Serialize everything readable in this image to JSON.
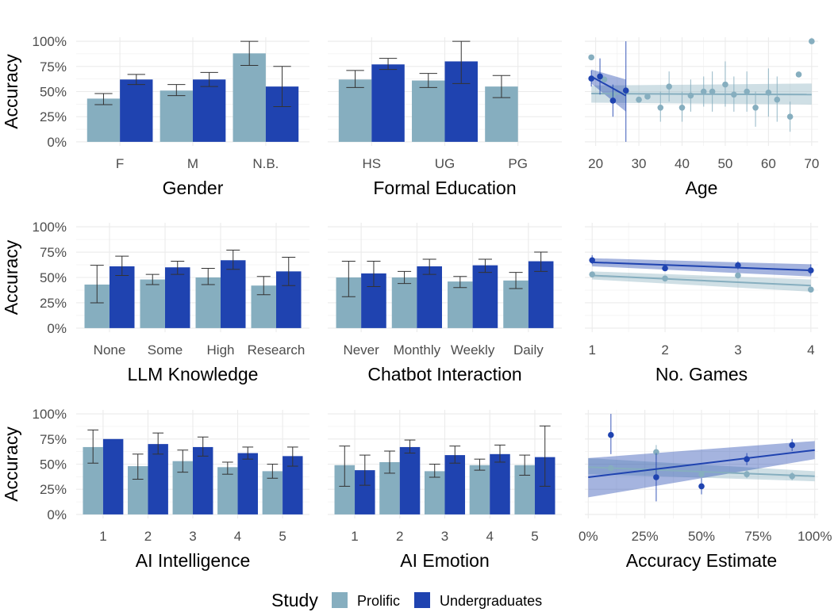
{
  "colors": {
    "prolific": "#86aebf",
    "undergrad": "#1f43b0",
    "grid": "#ebebeb",
    "errorbar": "#333333"
  },
  "legend": {
    "title": "Study",
    "items": [
      {
        "key": "prolific",
        "label": "Prolific"
      },
      {
        "key": "undergrad",
        "label": "Undergraduates"
      }
    ]
  },
  "y_ticks": [
    "0%",
    "25%",
    "50%",
    "75%",
    "100%"
  ],
  "chart_data": [
    {
      "id": "gender",
      "type": "bar",
      "xlabel": "Gender",
      "ylabel": "Accuracy",
      "ylim": [
        0,
        1
      ],
      "categories": [
        "F",
        "M",
        "N.B."
      ],
      "series": [
        {
          "name": "Prolific",
          "key": "prolific",
          "values": [
            0.43,
            0.51,
            0.88
          ],
          "lo": [
            0.37,
            0.46,
            0.76
          ],
          "hi": [
            0.48,
            0.57,
            1.0
          ]
        },
        {
          "name": "Undergraduates",
          "key": "undergrad",
          "values": [
            0.62,
            0.62,
            0.55
          ],
          "lo": [
            0.57,
            0.55,
            0.35
          ],
          "hi": [
            0.67,
            0.69,
            0.75
          ]
        }
      ]
    },
    {
      "id": "education",
      "type": "bar",
      "xlabel": "Formal Education",
      "ylabel": "",
      "ylim": [
        0,
        1
      ],
      "categories": [
        "HS",
        "UG",
        "PG"
      ],
      "series": [
        {
          "name": "Prolific",
          "key": "prolific",
          "values": [
            0.62,
            0.61,
            0.55
          ],
          "lo": [
            0.54,
            0.54,
            0.44
          ],
          "hi": [
            0.71,
            0.68,
            0.66
          ]
        },
        {
          "name": "Undergraduates",
          "key": "undergrad",
          "values": [
            0.77,
            0.8,
            null
          ],
          "lo": [
            0.72,
            0.58,
            null
          ],
          "hi": [
            0.83,
            1.0,
            null
          ]
        }
      ]
    },
    {
      "id": "age",
      "type": "scatter",
      "xlabel": "Age",
      "ylabel": "",
      "xlim": [
        17.5,
        71.5
      ],
      "ylim": [
        0,
        1
      ],
      "x_ticks": [
        20,
        30,
        40,
        50,
        60,
        70
      ],
      "series": [
        {
          "name": "Prolific",
          "key": "prolific",
          "points": [
            [
              19,
              0.84
            ],
            [
              22,
              0.62
            ],
            [
              24,
              0.47
            ],
            [
              27,
              0.5
            ],
            [
              30,
              0.42
            ],
            [
              32,
              0.45
            ],
            [
              35,
              0.34
            ],
            [
              37,
              0.55
            ],
            [
              40,
              0.34
            ],
            [
              42,
              0.46
            ],
            [
              45,
              0.5
            ],
            [
              47,
              0.5
            ],
            [
              50,
              0.57
            ],
            [
              52,
              0.47
            ],
            [
              55,
              0.5
            ],
            [
              57,
              0.34
            ],
            [
              60,
              0.49
            ],
            [
              62,
              0.42
            ],
            [
              65,
              0.25
            ],
            [
              67,
              0.67
            ],
            [
              70,
              1.0
            ]
          ],
          "error_lo": [
            null,
            null,
            null,
            null,
            null,
            null,
            0.2,
            0.4,
            0.2,
            0.3,
            0.35,
            0.3,
            0.35,
            0.3,
            0.3,
            0.15,
            0.25,
            0.2,
            0.1,
            null,
            null
          ],
          "error_hi": [
            null,
            null,
            null,
            null,
            null,
            null,
            0.5,
            0.7,
            0.5,
            0.62,
            0.65,
            0.7,
            0.8,
            0.65,
            0.7,
            0.5,
            0.73,
            0.65,
            0.4,
            null,
            null
          ],
          "fit": {
            "x": [
              19,
              70
            ],
            "y": [
              0.48,
              0.47
            ],
            "band_lo": [
              0.39,
              0.37
            ],
            "band_hi": [
              0.56,
              0.58
            ]
          }
        },
        {
          "name": "Undergraduates",
          "key": "undergrad",
          "points": [
            [
              19,
              0.63
            ],
            [
              21,
              0.65
            ],
            [
              24,
              0.41
            ],
            [
              27,
              0.51
            ]
          ],
          "error_lo": [
            0.55,
            0.47,
            0.25,
            0.0
          ],
          "error_hi": [
            0.71,
            0.83,
            0.57,
            1.0
          ],
          "fit": {
            "x": [
              19,
              27
            ],
            "y": [
              0.65,
              0.46
            ],
            "band_lo": [
              0.58,
              0.3
            ],
            "band_hi": [
              0.72,
              0.62
            ]
          }
        }
      ]
    },
    {
      "id": "llm",
      "type": "bar",
      "xlabel": "LLM Knowledge",
      "ylabel": "Accuracy",
      "ylim": [
        0,
        1
      ],
      "categories": [
        "None",
        "Some",
        "High",
        "Research"
      ],
      "series": [
        {
          "name": "Prolific",
          "key": "prolific",
          "values": [
            0.43,
            0.48,
            0.5,
            0.42
          ],
          "lo": [
            0.25,
            0.43,
            0.43,
            0.33
          ],
          "hi": [
            0.62,
            0.53,
            0.59,
            0.51
          ]
        },
        {
          "name": "Undergraduates",
          "key": "undergrad",
          "values": [
            0.61,
            0.6,
            0.67,
            0.56
          ],
          "lo": [
            0.52,
            0.53,
            0.58,
            0.42
          ],
          "hi": [
            0.71,
            0.66,
            0.77,
            0.7
          ]
        }
      ]
    },
    {
      "id": "chatbot",
      "type": "bar",
      "xlabel": "Chatbot Interaction",
      "ylabel": "",
      "ylim": [
        0,
        1
      ],
      "categories": [
        "Never",
        "Monthly",
        "Weekly",
        "Daily"
      ],
      "series": [
        {
          "name": "Prolific",
          "key": "prolific",
          "values": [
            0.5,
            0.5,
            0.46,
            0.47
          ],
          "lo": [
            0.31,
            0.44,
            0.4,
            0.39
          ],
          "hi": [
            0.66,
            0.56,
            0.51,
            0.55
          ]
        },
        {
          "name": "Undergraduates",
          "key": "undergrad",
          "values": [
            0.54,
            0.61,
            0.62,
            0.66
          ],
          "lo": [
            0.41,
            0.53,
            0.55,
            0.56
          ],
          "hi": [
            0.66,
            0.68,
            0.68,
            0.75
          ]
        }
      ]
    },
    {
      "id": "games",
      "type": "scatter",
      "xlabel": "No. Games",
      "ylabel": "",
      "xlim": [
        0.9,
        4.1
      ],
      "ylim": [
        0,
        1
      ],
      "x_ticks": [
        1,
        2,
        3,
        4
      ],
      "series": [
        {
          "name": "Prolific",
          "key": "prolific",
          "points": [
            [
              1,
              0.53
            ],
            [
              2,
              0.49
            ],
            [
              3,
              0.52
            ],
            [
              4,
              0.38
            ]
          ],
          "error_lo": [
            null,
            null,
            null,
            null
          ],
          "error_hi": [
            null,
            null,
            null,
            null
          ],
          "fit": {
            "x": [
              1,
              4
            ],
            "y": [
              0.52,
              0.42
            ],
            "band_lo": [
              0.48,
              0.36
            ],
            "band_hi": [
              0.56,
              0.48
            ]
          }
        },
        {
          "name": "Undergraduates",
          "key": "undergrad",
          "points": [
            [
              1,
              0.67
            ],
            [
              2,
              0.59
            ],
            [
              3,
              0.62
            ],
            [
              4,
              0.57
            ]
          ],
          "error_lo": [
            0.63,
            null,
            0.58,
            0.52
          ],
          "error_hi": [
            0.72,
            null,
            0.66,
            0.63
          ],
          "fit": {
            "x": [
              1,
              4
            ],
            "y": [
              0.65,
              0.57
            ],
            "band_lo": [
              0.61,
              0.51
            ],
            "band_hi": [
              0.69,
              0.63
            ]
          }
        }
      ]
    },
    {
      "id": "ai_intel",
      "type": "bar",
      "xlabel": "AI Intelligence",
      "ylabel": "Accuracy",
      "ylim": [
        0,
        1
      ],
      "categories": [
        "1",
        "2",
        "3",
        "4",
        "5"
      ],
      "series": [
        {
          "name": "Prolific",
          "key": "prolific",
          "values": [
            0.67,
            0.48,
            0.53,
            0.47,
            0.43
          ],
          "lo": [
            0.51,
            0.35,
            0.42,
            0.4,
            0.36
          ],
          "hi": [
            0.84,
            0.6,
            0.64,
            0.52,
            0.5
          ]
        },
        {
          "name": "Undergraduates",
          "key": "undergrad",
          "values": [
            0.75,
            0.7,
            0.67,
            0.61,
            0.58
          ],
          "lo": [
            null,
            0.6,
            0.58,
            0.55,
            0.48
          ],
          "hi": [
            null,
            0.81,
            0.77,
            0.67,
            0.67
          ]
        }
      ]
    },
    {
      "id": "ai_emotion",
      "type": "bar",
      "xlabel": "AI Emotion",
      "ylabel": "",
      "ylim": [
        0,
        1
      ],
      "categories": [
        "1",
        "2",
        "3",
        "4",
        "5"
      ],
      "series": [
        {
          "name": "Prolific",
          "key": "prolific",
          "values": [
            0.49,
            0.52,
            0.43,
            0.49,
            0.49
          ],
          "lo": [
            0.28,
            0.41,
            0.37,
            0.44,
            0.39
          ],
          "hi": [
            0.68,
            0.63,
            0.5,
            0.55,
            0.59
          ]
        },
        {
          "name": "Undergraduates",
          "key": "undergrad",
          "values": [
            0.44,
            0.67,
            0.59,
            0.6,
            0.57
          ],
          "lo": [
            0.29,
            0.61,
            0.51,
            0.52,
            0.28
          ],
          "hi": [
            0.59,
            0.74,
            0.68,
            0.69,
            0.88
          ]
        }
      ]
    },
    {
      "id": "acc_est",
      "type": "scatter",
      "xlabel": "Accuracy Estimate",
      "ylabel": "",
      "xlim": [
        -0.015,
        1.015
      ],
      "ylim": [
        0,
        1
      ],
      "x_ticks": [
        0,
        0.25,
        0.5,
        0.75,
        1.0
      ],
      "x_tick_labels": [
        "0%",
        "25%",
        "50%",
        "75%",
        "100%"
      ],
      "series": [
        {
          "name": "Prolific",
          "key": "prolific",
          "points": [
            [
              0.1,
              0.46
            ],
            [
              0.3,
              0.62
            ],
            [
              0.5,
              0.4
            ],
            [
              0.7,
              0.4
            ],
            [
              0.9,
              0.38
            ]
          ],
          "error_lo": [
            null,
            0.55,
            null,
            0.36,
            0.34
          ],
          "error_hi": [
            null,
            0.69,
            null,
            0.44,
            0.42
          ],
          "fit": {
            "x": [
              0.0,
              1.0
            ],
            "y": [
              0.47,
              0.38
            ],
            "band_lo": [
              0.4,
              0.33
            ],
            "band_hi": [
              0.56,
              0.43
            ]
          }
        },
        {
          "name": "Undergraduates",
          "key": "undergrad",
          "points": [
            [
              0.1,
              0.79
            ],
            [
              0.3,
              0.37
            ],
            [
              0.5,
              0.28
            ],
            [
              0.7,
              0.55
            ],
            [
              0.9,
              0.69
            ]
          ],
          "error_lo": [
            0.6,
            0.13,
            0.2,
            0.49,
            0.63
          ],
          "error_hi": [
            1.0,
            0.61,
            0.36,
            0.61,
            0.75
          ],
          "fit": {
            "x": [
              0.0,
              1.0
            ],
            "y": [
              0.37,
              0.64
            ],
            "band_lo": [
              0.17,
              0.55
            ],
            "band_hi": [
              0.56,
              0.73
            ]
          }
        }
      ]
    }
  ]
}
